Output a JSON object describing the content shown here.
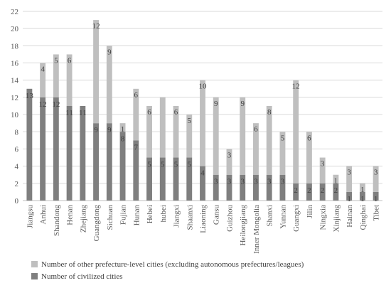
{
  "chart_data": {
    "type": "bar",
    "stacked": true,
    "categories": [
      "Jiangsu",
      "Anhui",
      "Shandong",
      "Henan",
      "Zhejiang",
      "Guangdong",
      "Sichuan",
      "Fujian",
      "Hunan",
      "Hebei",
      "hubei",
      "Jiangxi",
      "Shaanxi",
      "Liaoning",
      "Gansu",
      "Guizhou",
      "Heilongjiang",
      "Inner Mongolia",
      "Shanxi",
      "Yunnan",
      "Guangxi",
      "Jilin",
      "Ningxia",
      "Xinjiang",
      "Hainan",
      "Qinghai",
      "Tibet"
    ],
    "series": [
      {
        "name": "Number of civilized cities",
        "color": "#7f7f7f",
        "values": [
          13,
          12,
          12,
          11,
          11,
          9,
          9,
          8,
          7,
          5,
          5,
          5,
          5,
          4,
          3,
          3,
          3,
          3,
          3,
          3,
          2,
          2,
          2,
          2,
          1,
          1,
          1
        ],
        "labels": [
          "13",
          "12",
          "12",
          "11",
          "11",
          "9",
          "9",
          "8",
          "7",
          "5",
          "5",
          "5",
          "5",
          "4",
          "3",
          "3",
          "3",
          "3",
          "3",
          "3",
          "2",
          "2",
          "2",
          "2",
          "1",
          "1",
          "1"
        ]
      },
      {
        "name": "Number of other prefecture-level cities (excluding autonomous prefectures/leagues)",
        "color": "#bfbfbf",
        "values": [
          0,
          4,
          5,
          6,
          0,
          12,
          9,
          1,
          6,
          6,
          7,
          6,
          5,
          10,
          9,
          3,
          9,
          6,
          8,
          5,
          12,
          6,
          3,
          1,
          3,
          1,
          3
        ],
        "labels": [
          "",
          "4",
          "5",
          "6",
          "",
          "12",
          "9",
          "1",
          "6",
          "6",
          "",
          "6",
          "5",
          "10",
          "9",
          "3",
          "9",
          "6",
          "8",
          "5",
          "12",
          "6",
          "3",
          "1",
          "3",
          "1",
          "3"
        ]
      }
    ],
    "yticks": [
      "0",
      "2",
      "4",
      "6",
      "8",
      "10",
      "12",
      "14",
      "16",
      "18",
      "20",
      "22"
    ],
    "ylim": [
      0,
      22
    ],
    "title": "",
    "xlabel": "",
    "ylabel": "",
    "grid": true,
    "legend_position": "bottom"
  }
}
